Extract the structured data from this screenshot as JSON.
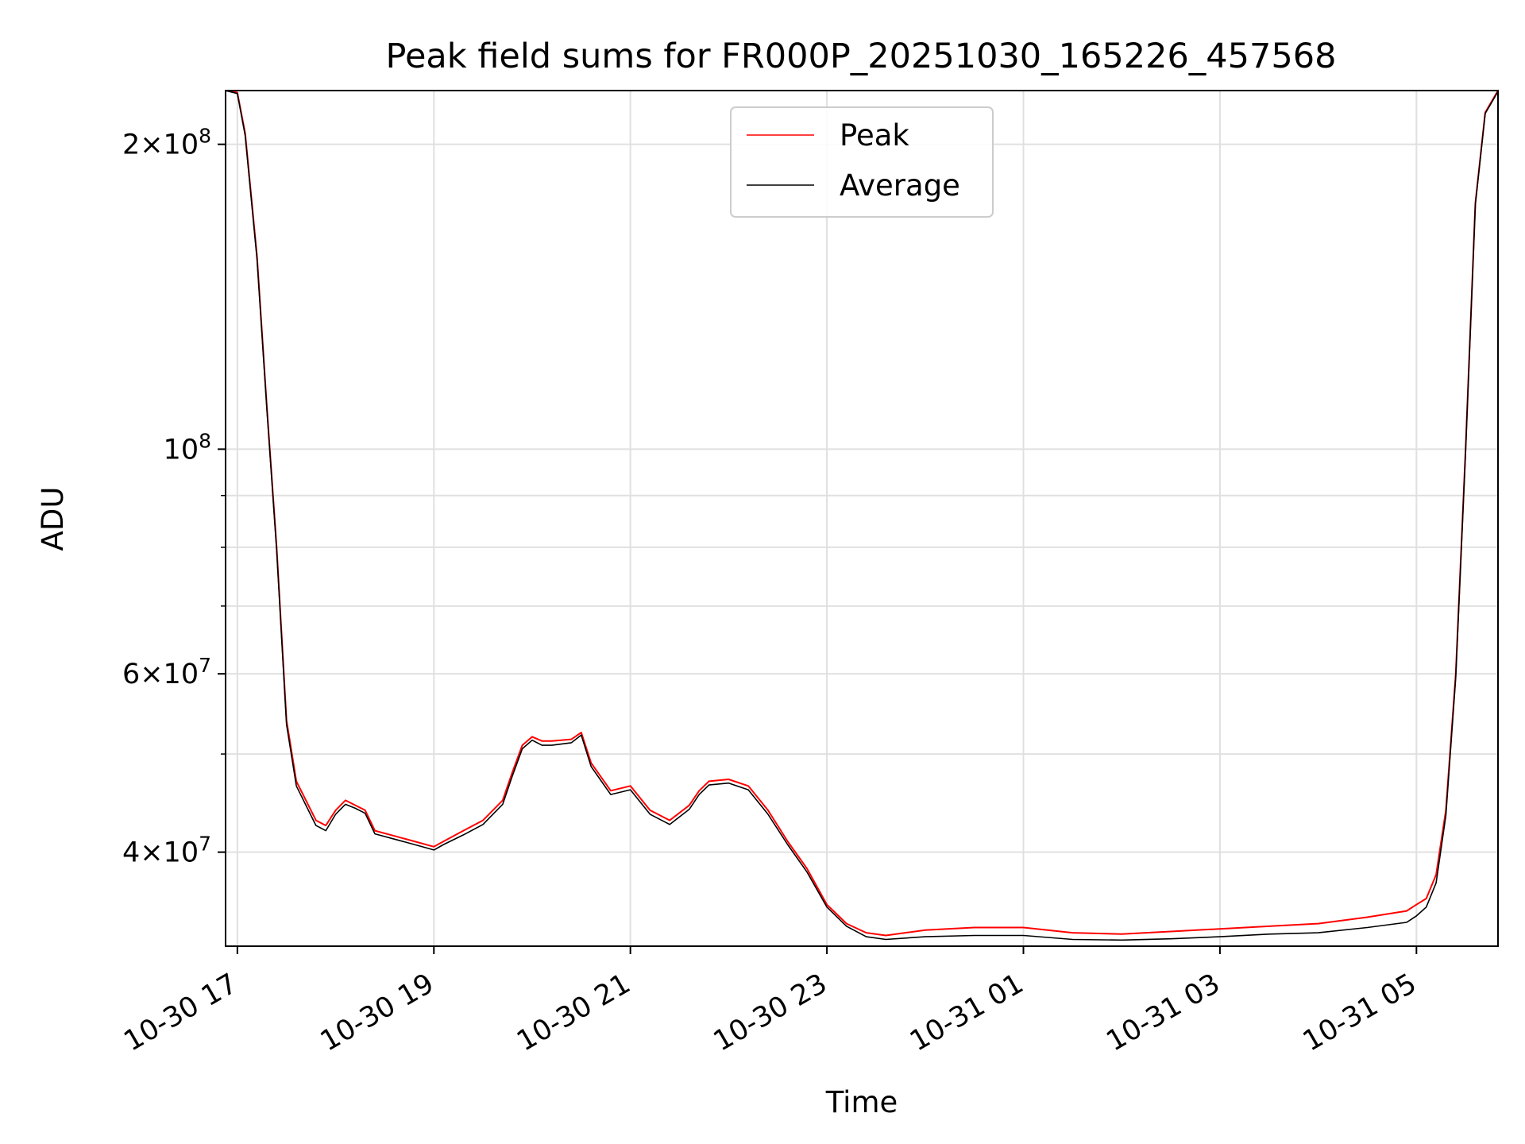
{
  "chart_data": {
    "type": "line",
    "title": "Peak field sums for FR000P_20251030_165226_457568",
    "xlabel": "Time",
    "ylabel": "ADU",
    "yscale": "log",
    "grid": true,
    "legend_position": "top-center",
    "xlim_hours": [
      16.88,
      29.83
    ],
    "ylim": [
      32300000,
      226000000
    ],
    "x_ticks": [
      {
        "label": "10-30 17",
        "hour": 17
      },
      {
        "label": "10-30 19",
        "hour": 19
      },
      {
        "label": "10-30 21",
        "hour": 21
      },
      {
        "label": "10-30 23",
        "hour": 23
      },
      {
        "label": "10-31 01",
        "hour": 25
      },
      {
        "label": "10-31 03",
        "hour": 27
      },
      {
        "label": "10-31 05",
        "hour": 29
      }
    ],
    "y_ticks": [
      {
        "value": 40000000,
        "mant": "4",
        "exp": "7"
      },
      {
        "value": 60000000,
        "mant": "6",
        "exp": "7"
      },
      {
        "value": 100000000,
        "mant": "",
        "exp": "8"
      },
      {
        "value": 200000000,
        "mant": "2",
        "exp": "8"
      }
    ],
    "y_minor_ticks": [
      50000000,
      70000000,
      80000000,
      90000000
    ],
    "series": [
      {
        "name": "Peak",
        "color": "#ff0000",
        "hours": [
          16.88,
          17.0,
          17.08,
          17.2,
          17.3,
          17.4,
          17.5,
          17.6,
          17.8,
          17.9,
          18.0,
          18.1,
          18.2,
          18.3,
          18.4,
          18.6,
          18.8,
          19.0,
          19.1,
          19.3,
          19.5,
          19.7,
          19.8,
          19.9,
          20.0,
          20.1,
          20.2,
          20.4,
          20.5,
          20.6,
          20.8,
          21.0,
          21.2,
          21.4,
          21.6,
          21.7,
          21.8,
          22.0,
          22.2,
          22.4,
          22.6,
          22.8,
          23.0,
          23.2,
          23.4,
          23.6,
          23.8,
          24.0,
          24.5,
          25.0,
          25.5,
          26.0,
          26.5,
          27.0,
          27.5,
          28.0,
          28.5,
          28.9,
          29.0,
          29.1,
          29.2,
          29.3,
          29.4,
          29.5,
          29.6,
          29.7,
          29.83
        ],
        "values": [
          226000000,
          225000000,
          205000000,
          155000000,
          110000000,
          80000000,
          54000000,
          47000000,
          43000000,
          42500000,
          44000000,
          45000000,
          44500000,
          44000000,
          42000000,
          41500000,
          41000000,
          40500000,
          41000000,
          42000000,
          43000000,
          45000000,
          48000000,
          51000000,
          52000000,
          51500000,
          51500000,
          51700000,
          52500000,
          49000000,
          46000000,
          46500000,
          44000000,
          43000000,
          44500000,
          46000000,
          47000000,
          47200000,
          46500000,
          44000000,
          41000000,
          38500000,
          35500000,
          34000000,
          33300000,
          33100000,
          33300000,
          33500000,
          33700000,
          33700000,
          33300000,
          33200000,
          33400000,
          33600000,
          33800000,
          34000000,
          34500000,
          35000000,
          35500000,
          36000000,
          38000000,
          44000000,
          60000000,
          100000000,
          175000000,
          215000000,
          226000000
        ]
      },
      {
        "name": "Average",
        "color": "#000000",
        "hours": [
          16.88,
          17.0,
          17.08,
          17.2,
          17.3,
          17.4,
          17.5,
          17.6,
          17.8,
          17.9,
          18.0,
          18.1,
          18.2,
          18.3,
          18.4,
          18.6,
          18.8,
          19.0,
          19.1,
          19.3,
          19.5,
          19.7,
          19.8,
          19.9,
          20.0,
          20.1,
          20.2,
          20.4,
          20.5,
          20.6,
          20.8,
          21.0,
          21.2,
          21.4,
          21.6,
          21.7,
          21.8,
          22.0,
          22.2,
          22.4,
          22.6,
          22.8,
          23.0,
          23.2,
          23.4,
          23.6,
          23.8,
          24.0,
          24.5,
          25.0,
          25.5,
          26.0,
          26.5,
          27.0,
          27.5,
          28.0,
          28.5,
          28.9,
          29.0,
          29.1,
          29.2,
          29.3,
          29.4,
          29.5,
          29.6,
          29.7,
          29.83
        ],
        "values": [
          226000000,
          224500000,
          204000000,
          154000000,
          109500000,
          79500000,
          53500000,
          46500000,
          42500000,
          42000000,
          43600000,
          44600000,
          44200000,
          43700000,
          41700000,
          41200000,
          40700000,
          40200000,
          40700000,
          41600000,
          42600000,
          44600000,
          47600000,
          50600000,
          51600000,
          51000000,
          51000000,
          51300000,
          52200000,
          48600000,
          45600000,
          46100000,
          43600000,
          42600000,
          44100000,
          45600000,
          46600000,
          46800000,
          46100000,
          43600000,
          40700000,
          38200000,
          35300000,
          33800000,
          33000000,
          32800000,
          32900000,
          33000000,
          33100000,
          33100000,
          32800000,
          32750000,
          32850000,
          33000000,
          33200000,
          33300000,
          33700000,
          34100000,
          34600000,
          35300000,
          37300000,
          43500000,
          59500000,
          99500000,
          174500000,
          214500000,
          225500000
        ]
      }
    ]
  }
}
